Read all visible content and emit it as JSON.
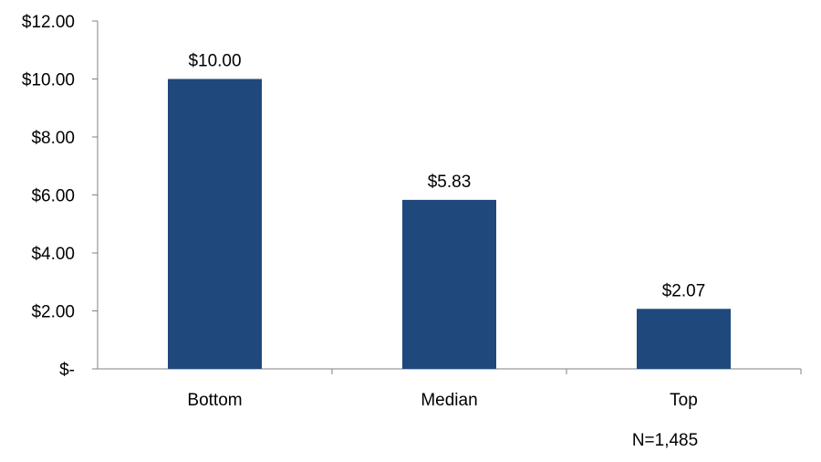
{
  "chart_data": {
    "type": "bar",
    "categories": [
      "Bottom",
      "Median",
      "Top"
    ],
    "values": [
      10.0,
      5.83,
      2.07
    ],
    "data_labels": [
      "$10.00",
      "$5.83",
      "$2.07"
    ],
    "yticks": [
      0,
      2,
      4,
      6,
      8,
      10,
      12
    ],
    "ytick_labels": [
      "$-",
      "$2.00",
      "$4.00",
      "$6.00",
      "$8.00",
      "$10.00",
      "$12.00"
    ],
    "ylim": [
      0,
      12
    ],
    "grid": false,
    "bar_color": "#1f497d",
    "axis_color": "#808080",
    "annotation": "N=1,485"
  }
}
